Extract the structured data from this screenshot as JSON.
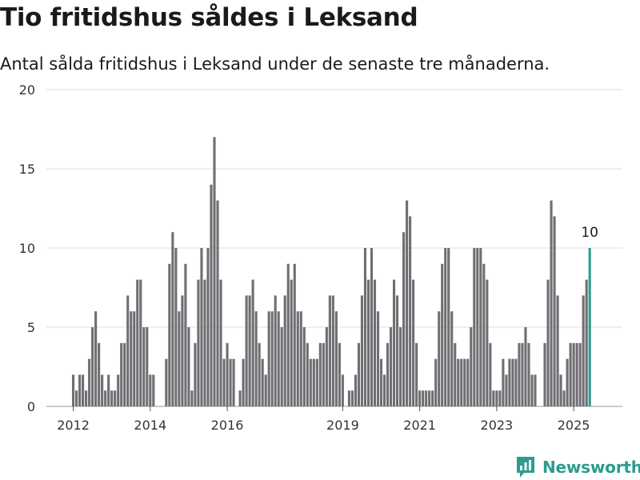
{
  "title": "Tio fritidshus såldes i Leksand",
  "subtitle": "Antal sålda fritidshus i Leksand under de senaste tre månaderna.",
  "brand": "Newsworthy",
  "colors": {
    "bar": "#6e6e73",
    "highlight": "#2a9d8f",
    "grid": "#dcdcdc",
    "brand": "#2a9d8f"
  },
  "chart_data": {
    "type": "bar",
    "ylim": [
      0,
      20
    ],
    "yticks": [
      0,
      5,
      10,
      15,
      20
    ],
    "grid": true,
    "x_start": "2012-01",
    "x_ticks": [
      "2012",
      "2014",
      "2016",
      "2019",
      "2021",
      "2023",
      "2025"
    ],
    "x_tick_periods": [
      "2012-01",
      "2014-01",
      "2016-01",
      "2019-01",
      "2021-01",
      "2023-01",
      "2025-01"
    ],
    "values": [
      2,
      1,
      2,
      2,
      1,
      3,
      5,
      6,
      4,
      2,
      1,
      2,
      1,
      1,
      2,
      4,
      4,
      7,
      6,
      6,
      8,
      8,
      5,
      5,
      2,
      2,
      0,
      0,
      0,
      3,
      9,
      11,
      10,
      6,
      7,
      9,
      5,
      1,
      4,
      8,
      10,
      8,
      10,
      14,
      17,
      13,
      8,
      3,
      4,
      3,
      3,
      0,
      1,
      3,
      7,
      7,
      8,
      6,
      4,
      3,
      2,
      6,
      6,
      7,
      6,
      5,
      7,
      9,
      8,
      9,
      6,
      6,
      5,
      4,
      3,
      3,
      3,
      4,
      4,
      5,
      7,
      7,
      6,
      4,
      2,
      0,
      1,
      1,
      2,
      4,
      7,
      10,
      8,
      10,
      8,
      6,
      3,
      2,
      4,
      5,
      8,
      7,
      5,
      11,
      13,
      12,
      8,
      4,
      1,
      1,
      1,
      1,
      1,
      3,
      6,
      9,
      10,
      10,
      6,
      4,
      3,
      3,
      3,
      3,
      5,
      10,
      10,
      10,
      9,
      8,
      4,
      1,
      1,
      1,
      3,
      2,
      3,
      3,
      3,
      4,
      4,
      5,
      4,
      2,
      2,
      0,
      0,
      4,
      8,
      13,
      12,
      7,
      2,
      1,
      3,
      4,
      4,
      4,
      4,
      7,
      8,
      10
    ],
    "highlight_last": true,
    "last_label": "10"
  }
}
